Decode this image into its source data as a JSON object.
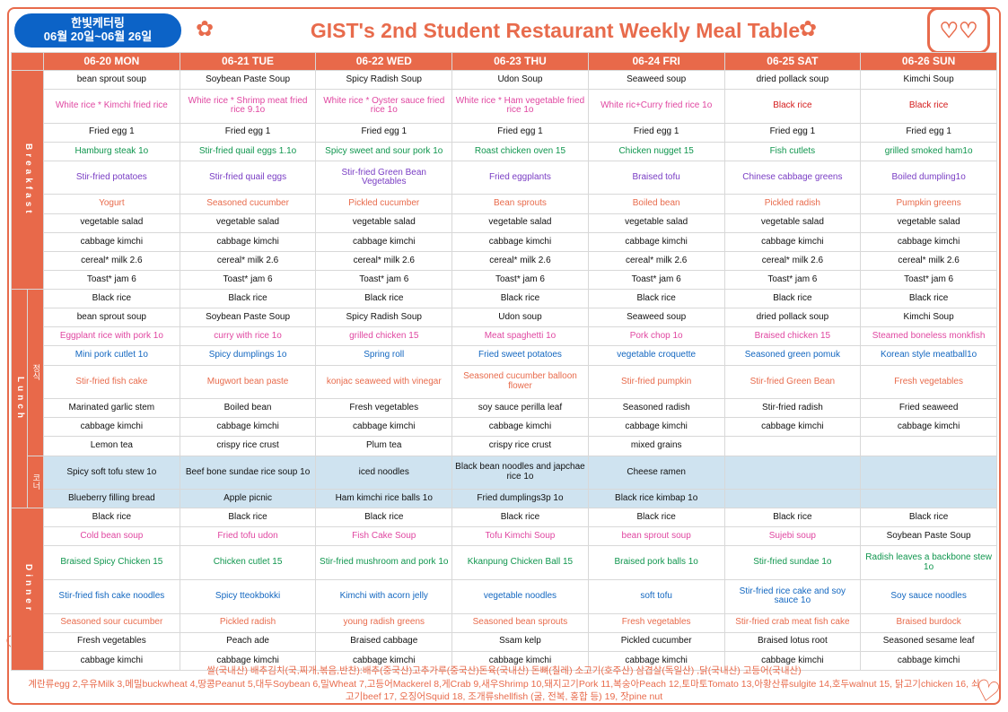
{
  "header": {
    "badge_line1": "한빛케터링",
    "badge_line2": "06월 20일~06월 26일",
    "title": "GIST's 2nd Student Restaurant Weekly Meal Table"
  },
  "days": [
    "06-20 MON",
    "06-21 TUE",
    "06-22 WED",
    "06-23 THU",
    "06-24 FRI",
    "06-25 SAT",
    "06-26 SUN"
  ],
  "side_labels": {
    "breakfast": "Breakfast",
    "lunch": "Lunch",
    "lunch_sub1": "정식",
    "lunch_sub2": "코너",
    "dinner": "Dinner"
  },
  "color_map": {
    "black": "#111",
    "pink": "#e047a1",
    "green": "#10964e",
    "purple": "#7a3ec4",
    "orange": "#e86b4c",
    "blue": "#1367c0",
    "red": "#d41c1c"
  },
  "breakfast": [
    [
      {
        "t": "bean sprout soup",
        "c": "black"
      },
      {
        "t": "Soybean Paste Soup",
        "c": "black"
      },
      {
        "t": "Spicy Radish Soup",
        "c": "black"
      },
      {
        "t": "Udon Soup",
        "c": "black"
      },
      {
        "t": "Seaweed soup",
        "c": "black"
      },
      {
        "t": "dried pollack soup",
        "c": "black"
      },
      {
        "t": "Kimchi Soup",
        "c": "black"
      }
    ],
    [
      {
        "t": "White rice * Kimchi fried rice",
        "c": "pink"
      },
      {
        "t": "White rice * Shrimp meat fried rice 9.1o",
        "c": "pink"
      },
      {
        "t": "White rice * Oyster sauce fried rice 1o",
        "c": "pink"
      },
      {
        "t": "White rice * Ham vegetable fried rice 1o",
        "c": "pink"
      },
      {
        "t": "White ric+Curry fried rice 1o",
        "c": "pink"
      },
      {
        "t": "Black rice",
        "c": "red"
      },
      {
        "t": "Black rice",
        "c": "red"
      }
    ],
    [
      {
        "t": "Fried egg 1",
        "c": "black"
      },
      {
        "t": "Fried egg 1",
        "c": "black"
      },
      {
        "t": "Fried egg 1",
        "c": "black"
      },
      {
        "t": "Fried egg 1",
        "c": "black"
      },
      {
        "t": "Fried egg 1",
        "c": "black"
      },
      {
        "t": "Fried egg 1",
        "c": "black"
      },
      {
        "t": "Fried egg 1",
        "c": "black"
      }
    ],
    [
      {
        "t": "Hamburg steak 1o",
        "c": "green"
      },
      {
        "t": "Stir-fried quail eggs 1.1o",
        "c": "green"
      },
      {
        "t": "Spicy sweet and sour pork 1o",
        "c": "green"
      },
      {
        "t": "Roast chicken oven 15",
        "c": "green"
      },
      {
        "t": "Chicken nugget 15",
        "c": "green"
      },
      {
        "t": "Fish cutlets",
        "c": "green"
      },
      {
        "t": "grilled smoked ham1o",
        "c": "green"
      }
    ],
    [
      {
        "t": "Stir-fried potatoes",
        "c": "purple"
      },
      {
        "t": "Stir-fried quail eggs",
        "c": "purple"
      },
      {
        "t": "Stir-fried Green Bean Vegetables",
        "c": "purple"
      },
      {
        "t": "Fried eggplants",
        "c": "purple"
      },
      {
        "t": "Braised tofu",
        "c": "purple"
      },
      {
        "t": "Chinese cabbage greens",
        "c": "purple"
      },
      {
        "t": "Boiled dumpling1o",
        "c": "purple"
      }
    ],
    [
      {
        "t": "Yogurt",
        "c": "orange"
      },
      {
        "t": "Seasoned cucumber",
        "c": "orange"
      },
      {
        "t": "Pickled cucumber",
        "c": "orange"
      },
      {
        "t": "Bean sprouts",
        "c": "orange"
      },
      {
        "t": "Boiled bean",
        "c": "orange"
      },
      {
        "t": "Pickled radish",
        "c": "orange"
      },
      {
        "t": "Pumpkin greens",
        "c": "orange"
      }
    ],
    [
      {
        "t": "vegetable salad",
        "c": "black"
      },
      {
        "t": "vegetable salad",
        "c": "black"
      },
      {
        "t": "vegetable salad",
        "c": "black"
      },
      {
        "t": "vegetable salad",
        "c": "black"
      },
      {
        "t": "vegetable salad",
        "c": "black"
      },
      {
        "t": "vegetable salad",
        "c": "black"
      },
      {
        "t": "vegetable salad",
        "c": "black"
      }
    ],
    [
      {
        "t": "cabbage kimchi",
        "c": "black"
      },
      {
        "t": "cabbage kimchi",
        "c": "black"
      },
      {
        "t": "cabbage kimchi",
        "c": "black"
      },
      {
        "t": "cabbage kimchi",
        "c": "black"
      },
      {
        "t": "cabbage kimchi",
        "c": "black"
      },
      {
        "t": "cabbage kimchi",
        "c": "black"
      },
      {
        "t": "cabbage kimchi",
        "c": "black"
      }
    ],
    [
      {
        "t": "cereal* milk 2.6",
        "c": "black"
      },
      {
        "t": "cereal* milk 2.6",
        "c": "black"
      },
      {
        "t": "cereal* milk 2.6",
        "c": "black"
      },
      {
        "t": "cereal* milk 2.6",
        "c": "black"
      },
      {
        "t": "cereal* milk 2.6",
        "c": "black"
      },
      {
        "t": "cereal* milk 2.6",
        "c": "black"
      },
      {
        "t": "cereal* milk 2.6",
        "c": "black"
      }
    ],
    [
      {
        "t": "Toast* jam 6",
        "c": "black"
      },
      {
        "t": "Toast* jam 6",
        "c": "black"
      },
      {
        "t": "Toast* jam 6",
        "c": "black"
      },
      {
        "t": "Toast* jam 6",
        "c": "black"
      },
      {
        "t": "Toast* jam 6",
        "c": "black"
      },
      {
        "t": "Toast* jam 6",
        "c": "black"
      },
      {
        "t": "Toast* jam 6",
        "c": "black"
      }
    ]
  ],
  "lunch_main": [
    [
      {
        "t": "Black rice",
        "c": "black"
      },
      {
        "t": "Black rice",
        "c": "black"
      },
      {
        "t": "Black rice",
        "c": "black"
      },
      {
        "t": "Black rice",
        "c": "black"
      },
      {
        "t": "Black rice",
        "c": "black"
      },
      {
        "t": "Black rice",
        "c": "black"
      },
      {
        "t": "Black rice",
        "c": "black"
      }
    ],
    [
      {
        "t": "bean sprout soup",
        "c": "black"
      },
      {
        "t": "Soybean Paste Soup",
        "c": "black"
      },
      {
        "t": "Spicy Radish Soup",
        "c": "black"
      },
      {
        "t": "Udon soup",
        "c": "black"
      },
      {
        "t": "Seaweed soup",
        "c": "black"
      },
      {
        "t": "dried pollack soup",
        "c": "black"
      },
      {
        "t": "Kimchi Soup",
        "c": "black"
      }
    ],
    [
      {
        "t": "Eggplant rice with pork 1o",
        "c": "pink"
      },
      {
        "t": "curry with rice 1o",
        "c": "pink"
      },
      {
        "t": "grilled chicken 15",
        "c": "pink"
      },
      {
        "t": "Meat spaghetti 1o",
        "c": "pink"
      },
      {
        "t": "Pork chop 1o",
        "c": "pink"
      },
      {
        "t": "Braised chicken  15",
        "c": "pink"
      },
      {
        "t": "Steamed boneless monkfish",
        "c": "pink"
      }
    ],
    [
      {
        "t": "Mini pork cutlet 1o",
        "c": "blue"
      },
      {
        "t": "Spicy dumplings 1o",
        "c": "blue"
      },
      {
        "t": "Spring roll",
        "c": "blue"
      },
      {
        "t": "Fried sweet potatoes",
        "c": "blue"
      },
      {
        "t": "vegetable croquette",
        "c": "blue"
      },
      {
        "t": "Seasoned green pomuk",
        "c": "blue"
      },
      {
        "t": "Korean style meatball1o",
        "c": "blue"
      }
    ],
    [
      {
        "t": "Stir-fried fish cake",
        "c": "orange"
      },
      {
        "t": "Mugwort bean paste",
        "c": "orange"
      },
      {
        "t": "konjac seaweed with vinegar",
        "c": "orange"
      },
      {
        "t": "Seasoned cucumber balloon flower",
        "c": "orange"
      },
      {
        "t": "Stir-fried pumpkin",
        "c": "orange"
      },
      {
        "t": "Stir-fried Green Bean",
        "c": "orange"
      },
      {
        "t": "Fresh vegetables",
        "c": "orange"
      }
    ],
    [
      {
        "t": "Marinated garlic stem",
        "c": "black"
      },
      {
        "t": "Boiled bean",
        "c": "black"
      },
      {
        "t": "Fresh vegetables",
        "c": "black"
      },
      {
        "t": "soy sauce perilla leaf",
        "c": "black"
      },
      {
        "t": "Seasoned radish",
        "c": "black"
      },
      {
        "t": "Stir-fried radish",
        "c": "black"
      },
      {
        "t": "Fried seaweed",
        "c": "black"
      }
    ],
    [
      {
        "t": "cabbage kimchi",
        "c": "black"
      },
      {
        "t": "cabbage kimchi",
        "c": "black"
      },
      {
        "t": "cabbage kimchi",
        "c": "black"
      },
      {
        "t": "cabbage kimchi",
        "c": "black"
      },
      {
        "t": "cabbage kimchi",
        "c": "black"
      },
      {
        "t": "cabbage kimchi",
        "c": "black"
      },
      {
        "t": "cabbage kimchi",
        "c": "black"
      }
    ],
    [
      {
        "t": "Lemon tea",
        "c": "black"
      },
      {
        "t": "crispy rice crust",
        "c": "black"
      },
      {
        "t": "Plum tea",
        "c": "black"
      },
      {
        "t": "crispy rice crust",
        "c": "black"
      },
      {
        "t": "mixed grains",
        "c": "black"
      },
      {
        "t": "",
        "c": "black"
      },
      {
        "t": "",
        "c": "black"
      }
    ]
  ],
  "lunch_corner": [
    [
      {
        "t": "Spicy soft tofu stew 1o",
        "c": "black"
      },
      {
        "t": "Beef bone sundae rice soup 1o",
        "c": "black"
      },
      {
        "t": "iced noodles",
        "c": "black"
      },
      {
        "t": "Black bean noodles and japchae rice 1o",
        "c": "black"
      },
      {
        "t": "Cheese ramen",
        "c": "black"
      },
      {
        "t": "",
        "c": "black"
      },
      {
        "t": "",
        "c": "black"
      }
    ],
    [
      {
        "t": "Blueberry filling bread",
        "c": "black"
      },
      {
        "t": "Apple picnic",
        "c": "black"
      },
      {
        "t": "Ham kimchi rice balls 1o",
        "c": "black"
      },
      {
        "t": "Fried dumplings3p 1o",
        "c": "black"
      },
      {
        "t": "Black rice kimbap 1o",
        "c": "black"
      },
      {
        "t": "",
        "c": "black"
      },
      {
        "t": "",
        "c": "black"
      }
    ]
  ],
  "dinner": [
    [
      {
        "t": "Black rice",
        "c": "black"
      },
      {
        "t": "Black rice",
        "c": "black"
      },
      {
        "t": "Black rice",
        "c": "black"
      },
      {
        "t": "Black rice",
        "c": "black"
      },
      {
        "t": "Black rice",
        "c": "black"
      },
      {
        "t": "Black rice",
        "c": "black"
      },
      {
        "t": "Black rice",
        "c": "black"
      }
    ],
    [
      {
        "t": "Cold bean soup",
        "c": "pink"
      },
      {
        "t": "Fried tofu udon",
        "c": "pink"
      },
      {
        "t": "Fish Cake Soup",
        "c": "pink"
      },
      {
        "t": "Tofu Kimchi Soup",
        "c": "pink"
      },
      {
        "t": "bean sprout soup",
        "c": "pink"
      },
      {
        "t": "Sujebi soup",
        "c": "pink"
      },
      {
        "t": "Soybean Paste Soup",
        "c": "black"
      }
    ],
    [
      {
        "t": "Braised Spicy Chicken 15",
        "c": "green"
      },
      {
        "t": "Chicken cutlet 15",
        "c": "green"
      },
      {
        "t": "Stir-fried mushroom and pork 1o",
        "c": "green"
      },
      {
        "t": "Kkanpung Chicken Ball 15",
        "c": "green"
      },
      {
        "t": "Braised pork balls 1o",
        "c": "green"
      },
      {
        "t": "Stir-fried sundae  1o",
        "c": "green"
      },
      {
        "t": "Radish leaves a backbone stew 1o",
        "c": "green"
      }
    ],
    [
      {
        "t": "Stir-fried fish cake noodles",
        "c": "blue"
      },
      {
        "t": "Spicy tteokbokki",
        "c": "blue"
      },
      {
        "t": "Kimchi with acorn jelly",
        "c": "blue"
      },
      {
        "t": "vegetable noodles",
        "c": "blue"
      },
      {
        "t": "soft tofu",
        "c": "blue"
      },
      {
        "t": "Stir-fried rice cake and soy sauce 1o",
        "c": "blue"
      },
      {
        "t": "Soy sauce noodles",
        "c": "blue"
      }
    ],
    [
      {
        "t": "Seasoned sour cucumber",
        "c": "orange"
      },
      {
        "t": "Pickled radish",
        "c": "orange"
      },
      {
        "t": "young radish greens",
        "c": "orange"
      },
      {
        "t": "Seasoned bean sprouts",
        "c": "orange"
      },
      {
        "t": "Fresh vegetables",
        "c": "orange"
      },
      {
        "t": "Stir-fried crab meat fish cake",
        "c": "orange"
      },
      {
        "t": "Braised burdock",
        "c": "orange"
      }
    ],
    [
      {
        "t": "Fresh vegetables",
        "c": "black"
      },
      {
        "t": "Peach ade",
        "c": "black"
      },
      {
        "t": "Braised cabbage",
        "c": "black"
      },
      {
        "t": "Ssam kelp",
        "c": "black"
      },
      {
        "t": "Pickled cucumber",
        "c": "black"
      },
      {
        "t": "Braised lotus root",
        "c": "black"
      },
      {
        "t": "Seasoned sesame leaf",
        "c": "black"
      }
    ],
    [
      {
        "t": "cabbage kimchi",
        "c": "black"
      },
      {
        "t": "cabbage kimchi",
        "c": "black"
      },
      {
        "t": "cabbage kimchi",
        "c": "black"
      },
      {
        "t": "cabbage kimchi",
        "c": "black"
      },
      {
        "t": "cabbage kimchi",
        "c": "black"
      },
      {
        "t": "cabbage kimchi",
        "c": "black"
      },
      {
        "t": "cabbage kimchi",
        "c": "black"
      }
    ]
  ],
  "footnote": {
    "line1": "쌀(국내산) 배추김치(국,찌개,볶음,반찬):배추(중국산)고추가루(중국산)돈육(국내산) 돈뼈(칠레) 소고기(호주산) 삼겹살(독일산) ,닭(국내산) 고등어(국내산)",
    "line2": "계란류egg 2,우유Milk 3,메밀buckwheat 4,땅콩Peanut 5,대두Soybean 6,밀Wheat 7,고등어Mackerel 8,게Crab 9,새우Shrimp 10,돼지고기Pork 11,복숭아Peach 12,토마토Tomato 13,아황산류sulgite 14,호두walnut 15, 닭고기chicken 16, 쇠고기beef 17, 오징어Squid 18, 조개류shellfish (굴, 전복, 홍합 등) 19, 잣pine nut"
  }
}
